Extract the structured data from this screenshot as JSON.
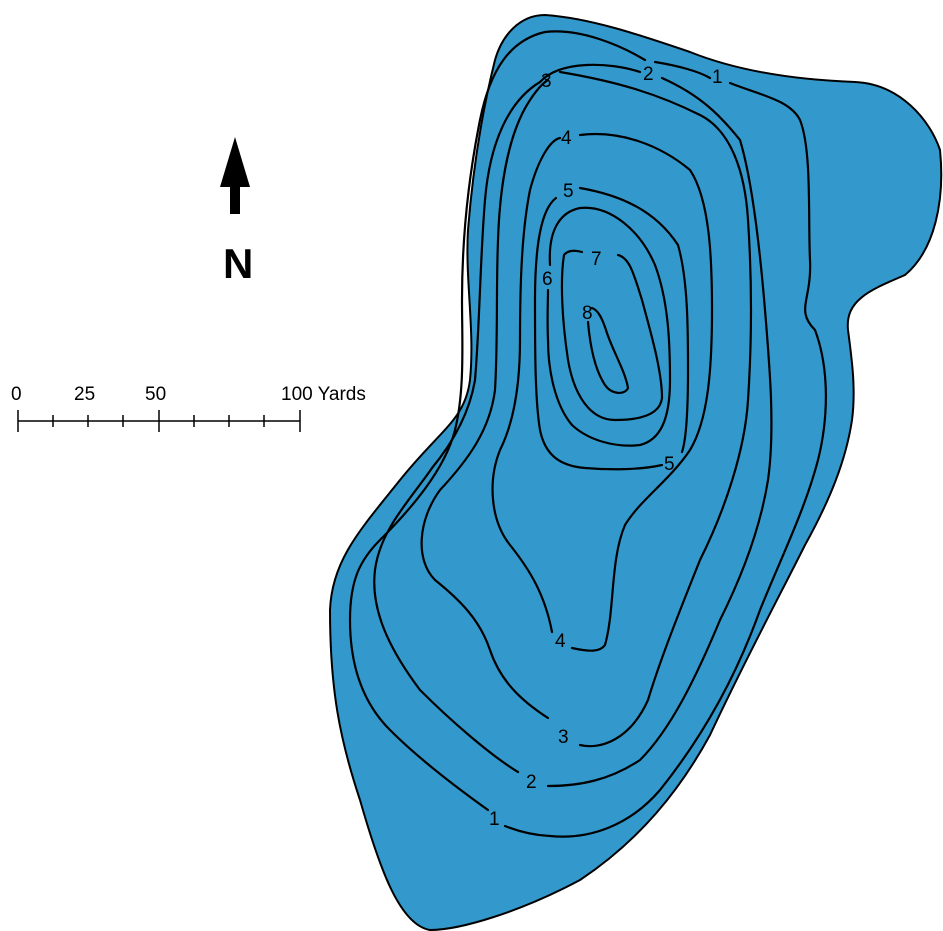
{
  "north_arrow": {
    "label": "N"
  },
  "scale_bar": {
    "tick_labels": [
      "0",
      "25",
      "50",
      "100 Yards"
    ]
  },
  "lake": {
    "fill_color": "#3399CC",
    "contour_labels": {
      "d1_north": "1",
      "d2_north": "2",
      "d3_north": "3",
      "d4_north": "4",
      "d5_north": "5",
      "d6": "6",
      "d7": "7",
      "d8": "8",
      "d5_south": "5",
      "d4_south": "4",
      "d3_south": "3",
      "d2_south": "2",
      "d1_south": "1"
    }
  }
}
